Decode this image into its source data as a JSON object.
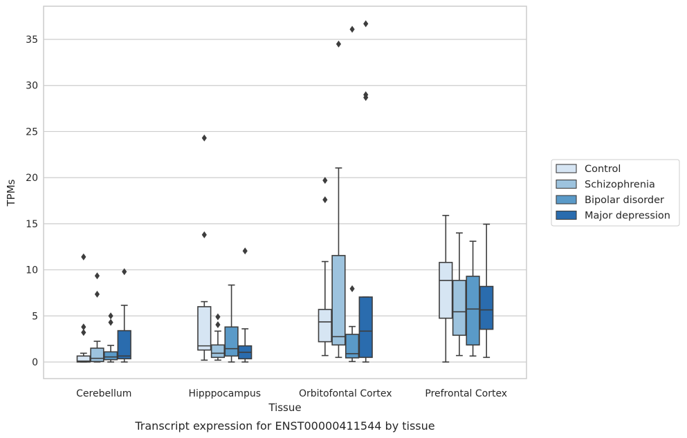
{
  "chart_data": {
    "type": "box",
    "title": "",
    "caption": "Transcript expression for ENST00000411544 by tissue",
    "xlabel": "Tissue",
    "ylabel": "TPMs",
    "ylim": [
      -1.8,
      38.6
    ],
    "yticks": [
      "0",
      "5",
      "10",
      "15",
      "20",
      "25",
      "30",
      "35"
    ],
    "yticks_values": [
      0,
      5,
      10,
      15,
      20,
      25,
      30,
      35
    ],
    "grid": "horizontal",
    "legend_position": "right",
    "categories": [
      "Cerebellum",
      "Hipppocampus",
      "Orbitofontal Cortex",
      "Prefrontal Cortex"
    ],
    "series": [
      {
        "name": "Control",
        "color": "#d6e5f3",
        "boxes": [
          {
            "whislo": 0.0,
            "q1": 0.0,
            "med": 0.1,
            "q3": 0.65,
            "whishi": 0.95,
            "fliers": [
              11.4,
              3.8,
              3.2
            ]
          },
          {
            "whislo": 0.2,
            "q1": 1.3,
            "med": 1.75,
            "q3": 6.0,
            "whishi": 6.55,
            "fliers": [
              24.3,
              13.8
            ]
          },
          {
            "whislo": 0.7,
            "q1": 2.2,
            "med": 4.35,
            "q3": 5.7,
            "whishi": 10.9,
            "fliers": [
              19.7,
              17.6
            ]
          },
          {
            "whislo": 0.0,
            "q1": 4.75,
            "med": 8.85,
            "q3": 10.8,
            "whishi": 15.9,
            "fliers": []
          }
        ]
      },
      {
        "name": "Schizophrenia",
        "color": "#9dc3de",
        "boxes": [
          {
            "whislo": 0.0,
            "q1": 0.05,
            "med": 0.4,
            "q3": 1.5,
            "whishi": 2.25,
            "fliers": [
              9.35,
              7.35
            ]
          },
          {
            "whislo": 0.2,
            "q1": 0.5,
            "med": 0.95,
            "q3": 1.85,
            "whishi": 3.35,
            "fliers": [
              4.9,
              4.05
            ]
          },
          {
            "whislo": 0.5,
            "q1": 1.85,
            "med": 2.75,
            "q3": 11.55,
            "whishi": 21.05,
            "fliers": [
              34.5
            ]
          },
          {
            "whislo": 0.7,
            "q1": 2.9,
            "med": 5.45,
            "q3": 8.85,
            "whishi": 14.0,
            "fliers": []
          }
        ]
      },
      {
        "name": "Bipolar disorder",
        "color": "#5a9ac8",
        "boxes": [
          {
            "whislo": 0.0,
            "q1": 0.25,
            "med": 0.55,
            "q3": 1.1,
            "whishi": 1.8,
            "fliers": [
              5.0,
              4.3
            ]
          },
          {
            "whislo": 0.0,
            "q1": 0.65,
            "med": 1.45,
            "q3": 3.8,
            "whishi": 8.35,
            "fliers": []
          },
          {
            "whislo": 0.05,
            "q1": 0.45,
            "med": 0.9,
            "q3": 3.0,
            "whishi": 3.85,
            "fliers": [
              36.1,
              7.95
            ]
          },
          {
            "whislo": 0.65,
            "q1": 1.85,
            "med": 5.75,
            "q3": 9.3,
            "whishi": 13.1,
            "fliers": []
          }
        ]
      },
      {
        "name": "Major depression",
        "color": "#2a6cae",
        "boxes": [
          {
            "whislo": 0.0,
            "q1": 0.35,
            "med": 0.65,
            "q3": 3.4,
            "whishi": 6.15,
            "fliers": [
              9.8
            ]
          },
          {
            "whislo": 0.0,
            "q1": 0.35,
            "med": 1.05,
            "q3": 1.75,
            "whishi": 3.6,
            "fliers": [
              12.05
            ]
          },
          {
            "whislo": 0.0,
            "q1": 0.5,
            "med": 3.35,
            "q3": 7.05,
            "whishi": 7.05,
            "fliers": [
              36.7,
              29.0,
              28.7
            ]
          },
          {
            "whislo": 0.5,
            "q1": 3.55,
            "med": 5.65,
            "q3": 8.2,
            "whishi": 14.95,
            "fliers": []
          }
        ]
      }
    ]
  }
}
